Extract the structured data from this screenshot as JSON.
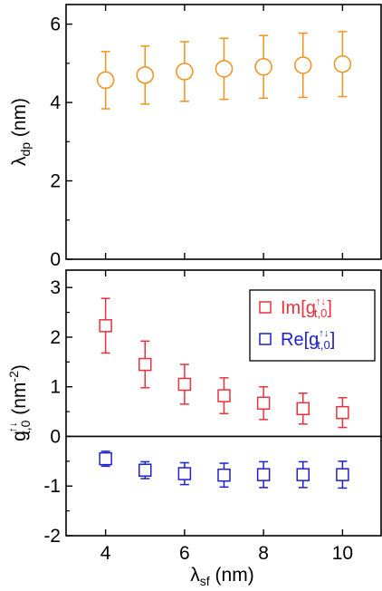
{
  "chart_data": [
    {
      "type": "scatter",
      "xlabel": "",
      "ylabel_main": "λ",
      "ylabel_sub": "dp",
      "ylabel_unit": " (nm)",
      "xlim": [
        3,
        11
      ],
      "ylim": [
        0,
        6.5
      ],
      "xticks": [
        4,
        6,
        8,
        10
      ],
      "yticks": [
        0,
        2,
        4,
        6
      ],
      "ytick_labels": [
        "0",
        "2",
        "4",
        "6"
      ],
      "series": [
        {
          "marker": "circle",
          "color": "#f0931c",
          "x": [
            4,
            5,
            6,
            7,
            8,
            9,
            10
          ],
          "y": [
            4.57,
            4.7,
            4.79,
            4.86,
            4.91,
            4.95,
            4.98
          ],
          "yerr": [
            0.73,
            0.74,
            0.76,
            0.78,
            0.8,
            0.82,
            0.83
          ]
        }
      ]
    },
    {
      "type": "scatter",
      "xlabel_main": "λ",
      "xlabel_sub": "sf",
      "xlabel_unit": " (nm)",
      "ylabel_main": "g",
      "ylabel_sup": "↑↓",
      "ylabel_sub": "t,0",
      "ylabel_unit": " (nm",
      "ylabel_unit_sup": "-2",
      "ylabel_close": ")",
      "xlim": [
        3,
        11
      ],
      "ylim": [
        -2,
        3.35
      ],
      "xticks": [
        4,
        6,
        8,
        10
      ],
      "xtick_labels": [
        "4",
        "6",
        "8",
        "10"
      ],
      "yticks": [
        -2,
        -1,
        0,
        1,
        2,
        3
      ],
      "ytick_labels": [
        "-2",
        "-1",
        "0",
        "1",
        "2",
        "3"
      ],
      "zero_line": true,
      "legend_position": "top-right",
      "series": [
        {
          "name_main": "Im[g",
          "name_sup": "↑↓",
          "name_sub": "t,0",
          "name_close": "]",
          "marker": "square",
          "color": "#e8323c",
          "x": [
            4,
            5,
            6,
            7,
            8,
            9,
            10
          ],
          "y": [
            2.23,
            1.45,
            1.05,
            0.82,
            0.67,
            0.56,
            0.48
          ],
          "yerr": [
            0.55,
            0.47,
            0.4,
            0.36,
            0.33,
            0.31,
            0.3
          ]
        },
        {
          "name_main": "Re[g",
          "name_sup": "↑↓",
          "name_sub": "t,0",
          "name_close": "]",
          "marker": "square",
          "color": "#1f1fd0",
          "x": [
            4,
            5,
            6,
            7,
            8,
            9,
            10
          ],
          "y": [
            -0.45,
            -0.68,
            -0.75,
            -0.78,
            -0.77,
            -0.77,
            -0.77
          ],
          "yerr": [
            0.15,
            0.17,
            0.22,
            0.24,
            0.26,
            0.26,
            0.27
          ]
        }
      ]
    }
  ]
}
